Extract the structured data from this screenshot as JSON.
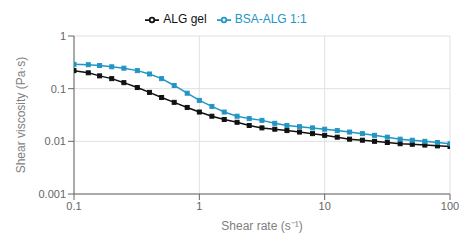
{
  "chart_data": {
    "type": "line",
    "xlabel": "Shear rate (s⁻¹)",
    "ylabel": "Shear viscosity (Pa·s)",
    "x": [
      0.1,
      0.13,
      0.16,
      0.2,
      0.25,
      0.32,
      0.4,
      0.5,
      0.63,
      0.8,
      1.0,
      1.26,
      1.58,
      2.0,
      2.5,
      3.16,
      4.0,
      5.0,
      6.3,
      8.0,
      10.0,
      12.6,
      15.8,
      20.0,
      25.0,
      31.6,
      40.0,
      50.0,
      63.0,
      79.4,
      100.0
    ],
    "series": [
      {
        "name": "ALG gel",
        "color": "#111111",
        "marker": "square",
        "values": [
          0.22,
          0.2,
          0.175,
          0.155,
          0.13,
          0.105,
          0.085,
          0.068,
          0.055,
          0.044,
          0.036,
          0.03,
          0.026,
          0.023,
          0.02,
          0.018,
          0.017,
          0.016,
          0.015,
          0.014,
          0.013,
          0.012,
          0.011,
          0.0105,
          0.01,
          0.0095,
          0.009,
          0.0088,
          0.0085,
          0.0082,
          0.008
        ]
      },
      {
        "name": "BSA-ALG 1:1",
        "color": "#2196c4",
        "marker": "square",
        "values": [
          0.29,
          0.285,
          0.275,
          0.26,
          0.245,
          0.22,
          0.19,
          0.155,
          0.115,
          0.082,
          0.06,
          0.046,
          0.036,
          0.03,
          0.027,
          0.025,
          0.022,
          0.02,
          0.019,
          0.018,
          0.017,
          0.016,
          0.015,
          0.014,
          0.013,
          0.012,
          0.011,
          0.0105,
          0.01,
          0.0095,
          0.009
        ]
      }
    ],
    "xlim": [
      0.1,
      100
    ],
    "ylim": [
      0.001,
      1
    ],
    "xticks": [
      0.1,
      1,
      10,
      100
    ],
    "yticks": [
      0.001,
      0.01,
      0.1,
      1
    ],
    "log": true,
    "grid": true,
    "legend": "top"
  }
}
